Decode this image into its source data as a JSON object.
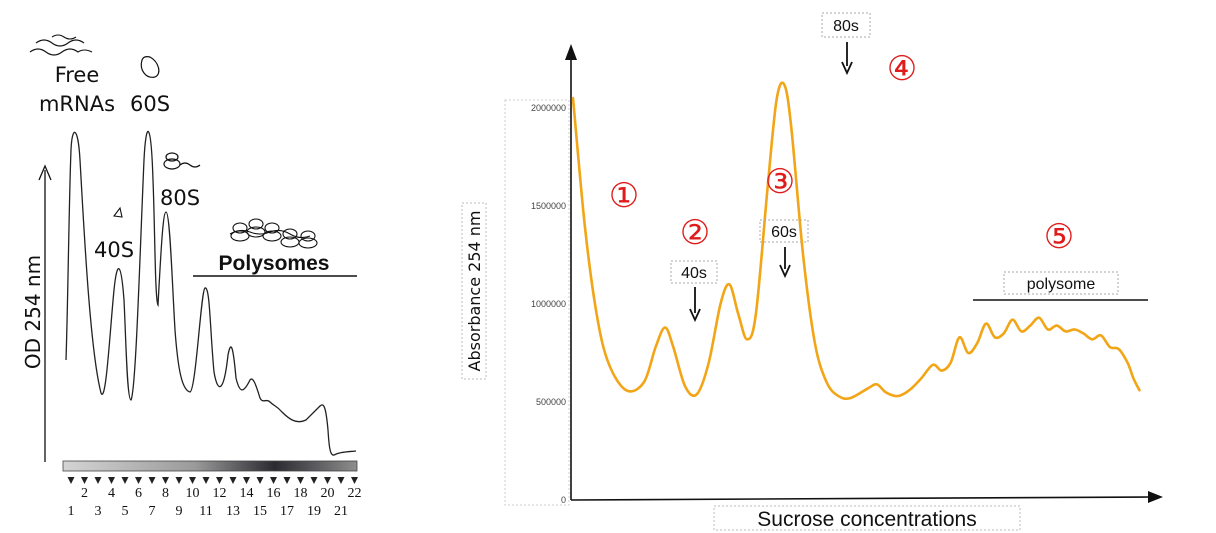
{
  "colors": {
    "trace": "#f2a516",
    "ink": "#111111",
    "annotation": "#e01b1b",
    "box": "#b5b5b5"
  },
  "left_panel": {
    "ylabel": "OD 254 nm",
    "labels": {
      "free": "Free",
      "mrnas": "mRNAs",
      "s60": "60S",
      "s80": "80S",
      "s40": "40S",
      "polysomes": "Polysomes"
    },
    "fractions_top": [
      "2",
      "4",
      "6",
      "8",
      "10",
      "12",
      "14",
      "16",
      "18",
      "20",
      "22"
    ],
    "fractions_bottom": [
      "1",
      "3",
      "5",
      "7",
      "9",
      "11",
      "13",
      "15",
      "17",
      "19",
      "21"
    ]
  },
  "chart_data": [
    {
      "type": "line",
      "ylabel": "OD 254 nm",
      "x": "fractions 1-22",
      "peaks": [
        {
          "label": "Free mRNAs",
          "fraction": 1.3
        },
        {
          "label": "40S",
          "fraction": 5.4
        },
        {
          "label": "60S",
          "fraction": 7.4
        },
        {
          "label": "80S",
          "fraction": 8.2
        },
        {
          "label": "Polysomes",
          "fraction": 11.0
        }
      ],
      "annotations": [
        "Free",
        "mRNAs",
        "60S",
        "80S",
        "40S",
        "Polysomes"
      ]
    },
    {
      "type": "line",
      "xlabel": "Sucrose concentrations",
      "ylabel": "Absorbance 254 nm",
      "yticks": [
        "0",
        "500000",
        "1000000",
        "1500000",
        "2000000"
      ],
      "ylim": [
        0,
        2300000
      ],
      "xlim": [
        0,
        100
      ],
      "series": [
        {
          "values": [
            [
              0,
              2050000
            ],
            [
              2,
              1400000
            ],
            [
              4,
              950000
            ],
            [
              6,
              700000
            ],
            [
              9,
              560000
            ],
            [
              12,
              600000
            ],
            [
              14,
              780000
            ],
            [
              15.6,
              880000
            ],
            [
              17,
              780000
            ],
            [
              19,
              580000
            ],
            [
              21,
              540000
            ],
            [
              23,
              700000
            ],
            [
              25,
              1000000
            ],
            [
              26.5,
              1100000
            ],
            [
              28,
              950000
            ],
            [
              29.5,
              820000
            ],
            [
              31,
              950000
            ],
            [
              33,
              1600000
            ],
            [
              34.5,
              2040000
            ],
            [
              35.8,
              2120000
            ],
            [
              37,
              1900000
            ],
            [
              39,
              1250000
            ],
            [
              41,
              800000
            ],
            [
              43,
              600000
            ],
            [
              45,
              530000
            ],
            [
              47,
              520000
            ],
            [
              50,
              570000
            ],
            [
              51.5,
              590000
            ],
            [
              53,
              550000
            ],
            [
              55,
              530000
            ],
            [
              57,
              560000
            ],
            [
              59,
              620000
            ],
            [
              61,
              690000
            ],
            [
              62.5,
              660000
            ],
            [
              64,
              700000
            ],
            [
              65.5,
              830000
            ],
            [
              67,
              750000
            ],
            [
              68.5,
              800000
            ],
            [
              70,
              900000
            ],
            [
              71.5,
              830000
            ],
            [
              73,
              850000
            ],
            [
              74.5,
              920000
            ],
            [
              76,
              860000
            ],
            [
              77.5,
              890000
            ],
            [
              79,
              930000
            ],
            [
              80.5,
              870000
            ],
            [
              82,
              890000
            ],
            [
              83.5,
              860000
            ],
            [
              85,
              870000
            ],
            [
              86.5,
              850000
            ],
            [
              88,
              820000
            ],
            [
              89.5,
              840000
            ],
            [
              91,
              780000
            ],
            [
              92.5,
              770000
            ],
            [
              94,
              700000
            ],
            [
              95,
              620000
            ],
            [
              96,
              560000
            ]
          ]
        }
      ],
      "annotations": [
        "40s",
        "60s",
        "80s",
        "polysome",
        "①",
        "②",
        "③",
        "④",
        "⑤"
      ]
    }
  ],
  "right_panel": {
    "ylabel": "Absorbance 254 nm",
    "xlabel": "Sucrose concentrations",
    "yticks": [
      "0",
      "500000",
      "1000000",
      "1500000",
      "2000000"
    ],
    "peak_labels": {
      "s40": "40s",
      "s60": "60s",
      "s80": "80s",
      "poly": "polysome"
    },
    "markers": [
      "①",
      "②",
      "③",
      "④",
      "⑤"
    ]
  }
}
